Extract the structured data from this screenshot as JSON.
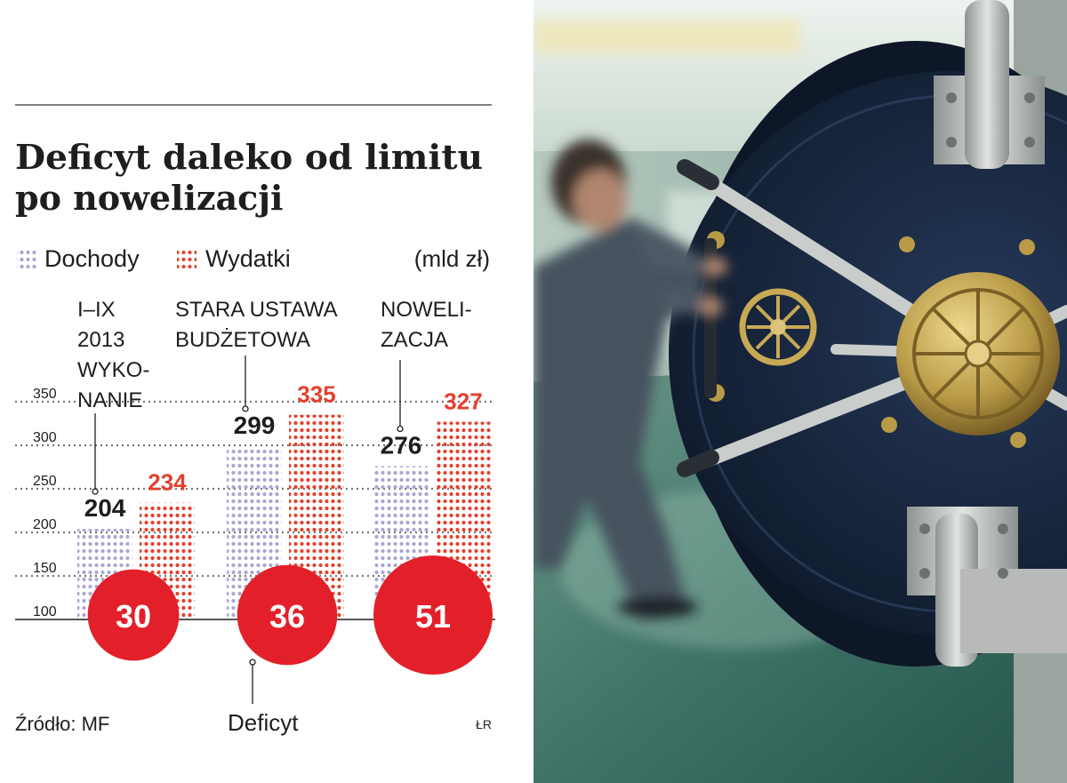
{
  "chart_data": {
    "type": "bar",
    "title": "Deficyt daleko od limitu po nowelizacji",
    "unit": "(mld zł)",
    "ylim": [
      100,
      350
    ],
    "yticks": [
      100,
      150,
      200,
      250,
      300,
      350
    ],
    "grid": true,
    "legend_position": "top-left",
    "categories": [
      {
        "lines": [
          "I–IX",
          "2013",
          "WYKO-",
          "NANIE"
        ]
      },
      {
        "lines": [
          "STARA USTAWA",
          "BUDŻETOWA"
        ]
      },
      {
        "lines": [
          "NOWELI-",
          "ZACJA"
        ]
      }
    ],
    "series": [
      {
        "name": "Dochody",
        "color": "#aaa6d2",
        "values": [
          204,
          299,
          276
        ]
      },
      {
        "name": "Wydatki",
        "color": "#e2402d",
        "values": [
          234,
          335,
          327
        ]
      }
    ],
    "deficit": {
      "label": "Deficyt",
      "color": "#e3202a",
      "values": [
        30,
        36,
        51
      ]
    },
    "source": "Źródło: MF",
    "credit": "ŁR"
  },
  "photo": {
    "subject": "bank-vault-door",
    "colors": {
      "ceiling": "#d2e0d5",
      "wall": "#9fb8ad",
      "floor": "#3f7467",
      "door": "#1d2d44",
      "brass": "#b99a46",
      "steel": "#c7c9c7"
    }
  }
}
